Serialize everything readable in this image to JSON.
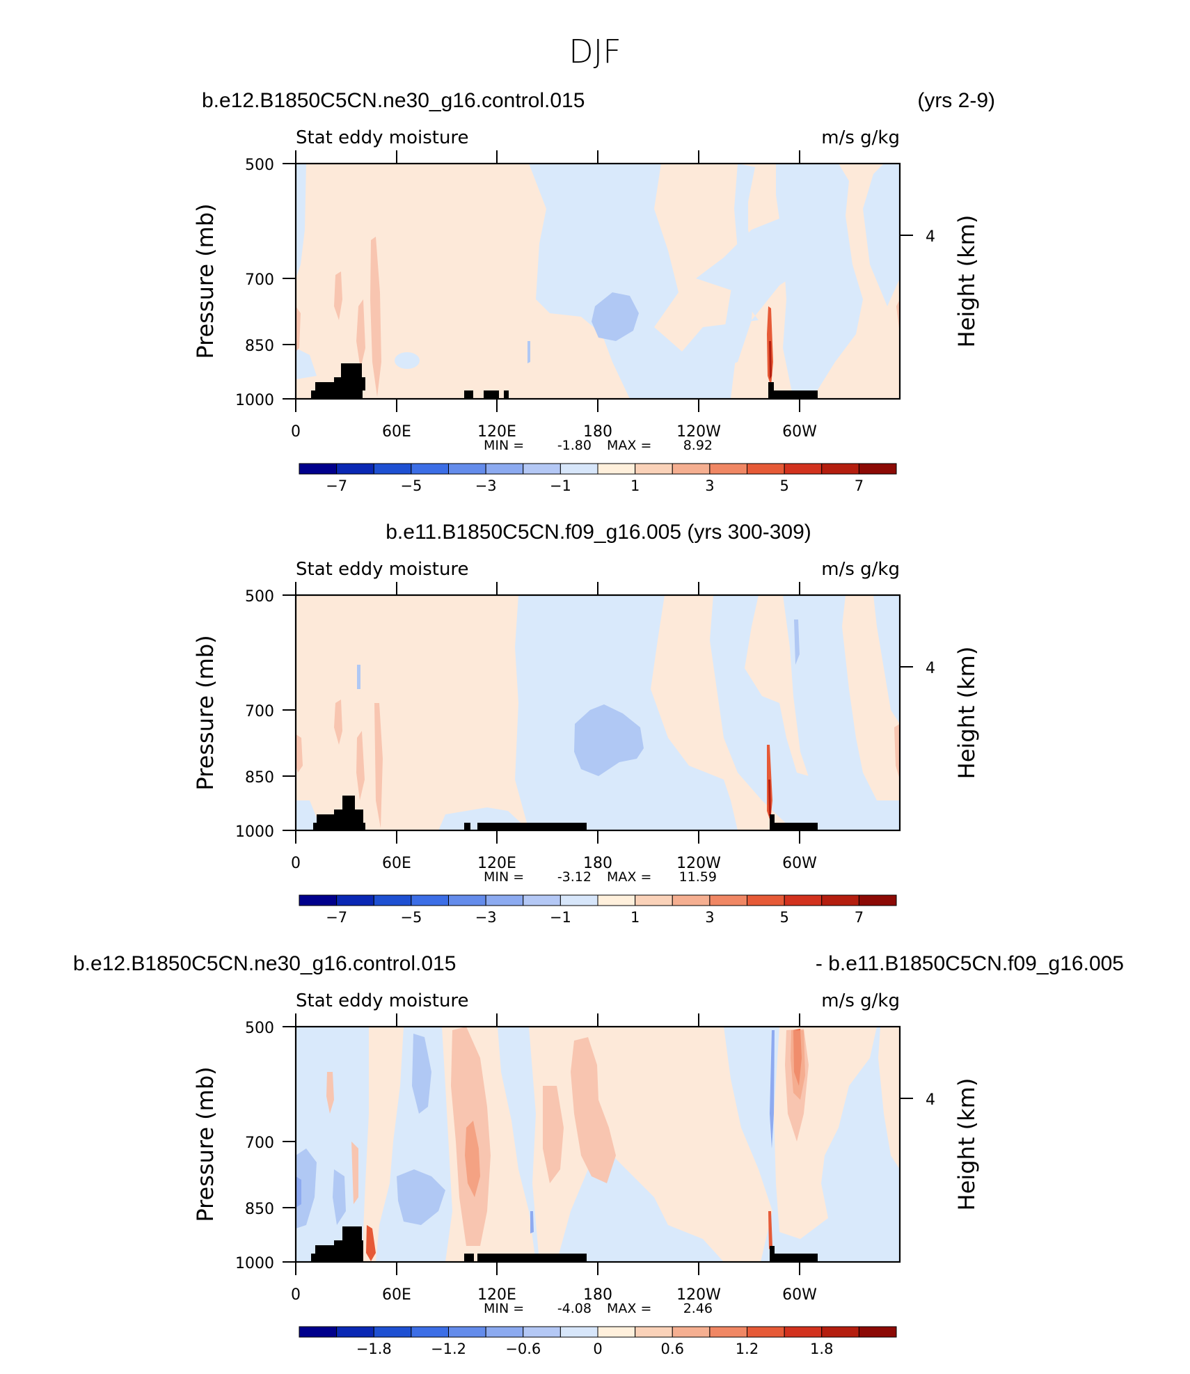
{
  "figure_title": "DJF",
  "chart_data": [
    {
      "type": "heatmap",
      "case_title_left": "b.e12.B1850C5CN.ne30_g16.control.015",
      "case_title_right": "(yrs 2-9)",
      "subtitle_left": "Stat eddy moisture",
      "subtitle_right": "m/s g/kg",
      "ylabel": "Pressure (mb)",
      "ylabel_right": "Height (km)",
      "y_ticks": [
        "500",
        "700",
        "850",
        "1000"
      ],
      "y_right_ticks": [
        "4"
      ],
      "x_ticks": [
        "0",
        "60E",
        "120E",
        "180",
        "120W",
        "60W"
      ],
      "ylim": [
        1000,
        500
      ],
      "min_label": "MIN =",
      "min_value": "-1.80",
      "max_label": "MAX =",
      "max_value": "8.92",
      "colorbar_labels": [
        "-7",
        "-5",
        "-3",
        "-1",
        "1",
        "3",
        "5",
        "7"
      ]
    },
    {
      "type": "heatmap",
      "case_title_center": "b.e11.B1850C5CN.f09_g16.005 (yrs 300-309)",
      "subtitle_left": "Stat eddy moisture",
      "subtitle_right": "m/s g/kg",
      "ylabel": "Pressure (mb)",
      "ylabel_right": "Height (km)",
      "y_ticks": [
        "500",
        "700",
        "850",
        "1000"
      ],
      "y_right_ticks": [
        "4"
      ],
      "x_ticks": [
        "0",
        "60E",
        "120E",
        "180",
        "120W",
        "60W"
      ],
      "ylim": [
        1000,
        500
      ],
      "min_label": "MIN =",
      "min_value": "-3.12",
      "max_label": "MAX =",
      "max_value": "11.59",
      "colorbar_labels": [
        "-7",
        "-5",
        "-3",
        "-1",
        "1",
        "3",
        "5",
        "7"
      ]
    },
    {
      "type": "heatmap",
      "case_title_left": "b.e12.B1850C5CN.ne30_g16.control.015",
      "case_title_right": "- b.e11.B1850C5CN.f09_g16.005",
      "subtitle_left": "Stat eddy moisture",
      "subtitle_right": "m/s g/kg",
      "ylabel": "Pressure (mb)",
      "ylabel_right": "Height (km)",
      "y_ticks": [
        "500",
        "700",
        "850",
        "1000"
      ],
      "y_right_ticks": [
        "4"
      ],
      "x_ticks": [
        "0",
        "60E",
        "120E",
        "180",
        "120W",
        "60W"
      ],
      "ylim": [
        1000,
        500
      ],
      "min_label": "MIN =",
      "min_value": "-4.08",
      "max_label": "MAX =",
      "max_value": "2.46",
      "colorbar_labels": [
        "-1.8",
        "-1.2",
        "-0.6",
        "0",
        "0.6",
        "1.2",
        "1.8"
      ]
    }
  ],
  "colorbar_colors": [
    "#00008c",
    "#0a28b4",
    "#1e50d2",
    "#3c6ee6",
    "#648ceb",
    "#8caaf0",
    "#b4c8f5",
    "#d7e6fa",
    "#fff0dc",
    "#fad2b9",
    "#f5af91",
    "#f08764",
    "#e65a37",
    "#d2321e",
    "#b41e0f",
    "#8c0a05"
  ],
  "palette": {
    "light_blue": "#d9e9fb",
    "mid_blue": "#b0c8f4",
    "blue": "#8eaaf0",
    "strong_blue": "#6b91ee",
    "light_orange": "#fde9d9",
    "mid_orange": "#f8c5b0",
    "orange": "#f4a283",
    "strong_orange": "#e65a37",
    "dark_red": "#b41e0f",
    "terrain": "#000000"
  }
}
